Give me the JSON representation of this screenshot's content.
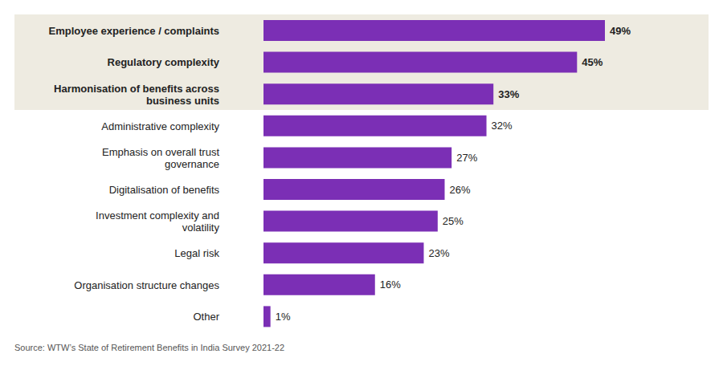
{
  "chart_data": {
    "type": "bar",
    "orientation": "horizontal",
    "categories": [
      "Employee experience / complaints",
      "Regulatory complexity",
      "Harmonisation of benefits across business units",
      "Administrative complexity",
      "Emphasis on overall trust governance",
      "Digitalisation of benefits",
      "Investment complexity and volatility",
      "Legal risk",
      "Organisation structure changes",
      "Other"
    ],
    "values": [
      49,
      45,
      33,
      32,
      27,
      26,
      25,
      23,
      16,
      1
    ],
    "value_labels": [
      "49%",
      "45%",
      "33%",
      "32%",
      "27%",
      "26%",
      "25%",
      "23%",
      "16%",
      "1%"
    ],
    "color": "#7B2FB5",
    "data_labels": true,
    "tick_labels": "y",
    "grid": false,
    "annotations": [
      "Source: WTW’s State of Retirement Benefits in India Survey 2021-22"
    ]
  }
}
